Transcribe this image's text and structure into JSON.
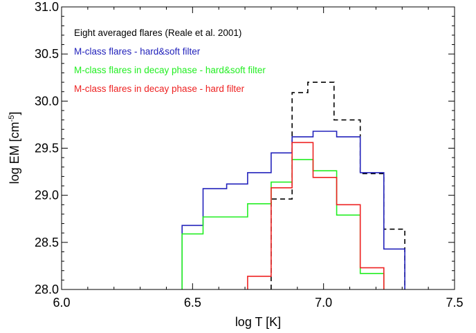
{
  "chart_data": {
    "type": "line",
    "xlabel": "log T [K]",
    "ylabel_main": "log EM [cm",
    "ylabel_sup": "-5",
    "ylabel_close": "]",
    "xlim": [
      6.0,
      7.5
    ],
    "ylim": [
      28.0,
      31.0
    ],
    "xticks": [
      6.0,
      6.5,
      7.0,
      7.5
    ],
    "xtick_labels": [
      "6.0",
      "6.5",
      "7.0",
      "7.5"
    ],
    "yticks": [
      28.0,
      28.5,
      29.0,
      29.5,
      30.0,
      30.5,
      31.0
    ],
    "ytick_labels": [
      "28.0",
      "28.5",
      "29.0",
      "29.5",
      "30.0",
      "30.5",
      "31.0"
    ],
    "grid": false,
    "legend_position": "top-left",
    "series": [
      {
        "name": "Eight averaged flares (Reale et al. 2001)",
        "color": "#000000",
        "dashed": true,
        "edges": [
          6.8,
          6.88,
          6.94,
          7.04,
          7.14,
          7.23,
          7.31
        ],
        "values": [
          28.96,
          30.09,
          30.2,
          29.8,
          29.23,
          28.64
        ]
      },
      {
        "name": "M-class flares - hard&soft filter",
        "color": "#2222bb",
        "dashed": false,
        "edges": [
          6.46,
          6.54,
          6.63,
          6.71,
          6.8,
          6.88,
          6.96,
          7.05,
          7.14,
          7.23,
          7.31
        ],
        "values": [
          28.68,
          29.07,
          29.12,
          29.24,
          29.45,
          29.62,
          29.68,
          29.62,
          29.24,
          28.43
        ]
      },
      {
        "name": "M-class flares in decay phase - hard&soft filter",
        "color": "#22ee22",
        "dashed": false,
        "edges": [
          6.46,
          6.54,
          6.63,
          6.71,
          6.8,
          6.88,
          6.96,
          7.05,
          7.14,
          7.23
        ],
        "values": [
          28.59,
          28.77,
          28.77,
          28.91,
          29.14,
          29.38,
          29.26,
          28.79,
          28.17
        ]
      },
      {
        "name": "M-class flares in decay phase - hard filter",
        "color": "#ee2222",
        "dashed": false,
        "edges": [
          6.71,
          6.8,
          6.88,
          6.96,
          7.05,
          7.14,
          7.23
        ],
        "values": [
          28.14,
          29.08,
          29.56,
          29.19,
          28.9,
          28.23
        ]
      }
    ]
  }
}
